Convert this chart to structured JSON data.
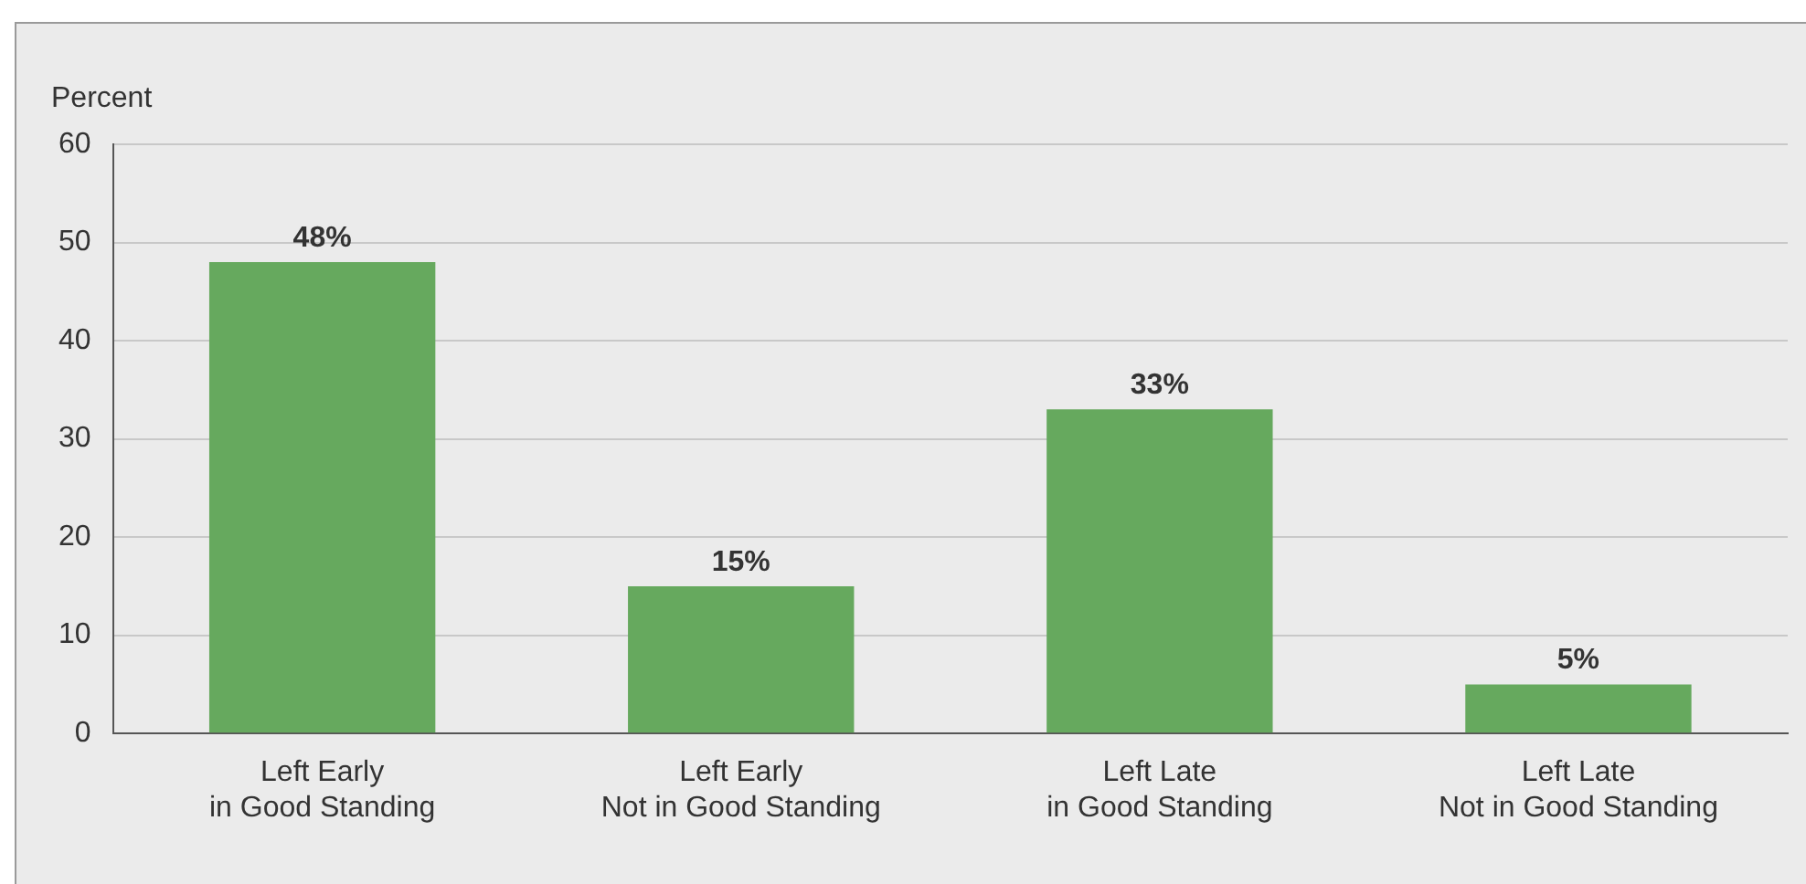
{
  "chart_data": {
    "type": "bar",
    "ylabel": "Percent",
    "categories": [
      "Left Early\nin Good Standing",
      "Left Early\nNot in Good Standing",
      "Left Late\nin Good Standing",
      "Left Late\nNot in Good Standing"
    ],
    "values": [
      48,
      15,
      33,
      5
    ],
    "value_labels": [
      "48%",
      "15%",
      "33%",
      "5%"
    ],
    "color": "#66a95e",
    "ylim": [
      0,
      60
    ],
    "yticks": [
      0,
      10,
      20,
      30,
      40,
      50,
      60
    ],
    "grid": "y",
    "legend": false
  }
}
